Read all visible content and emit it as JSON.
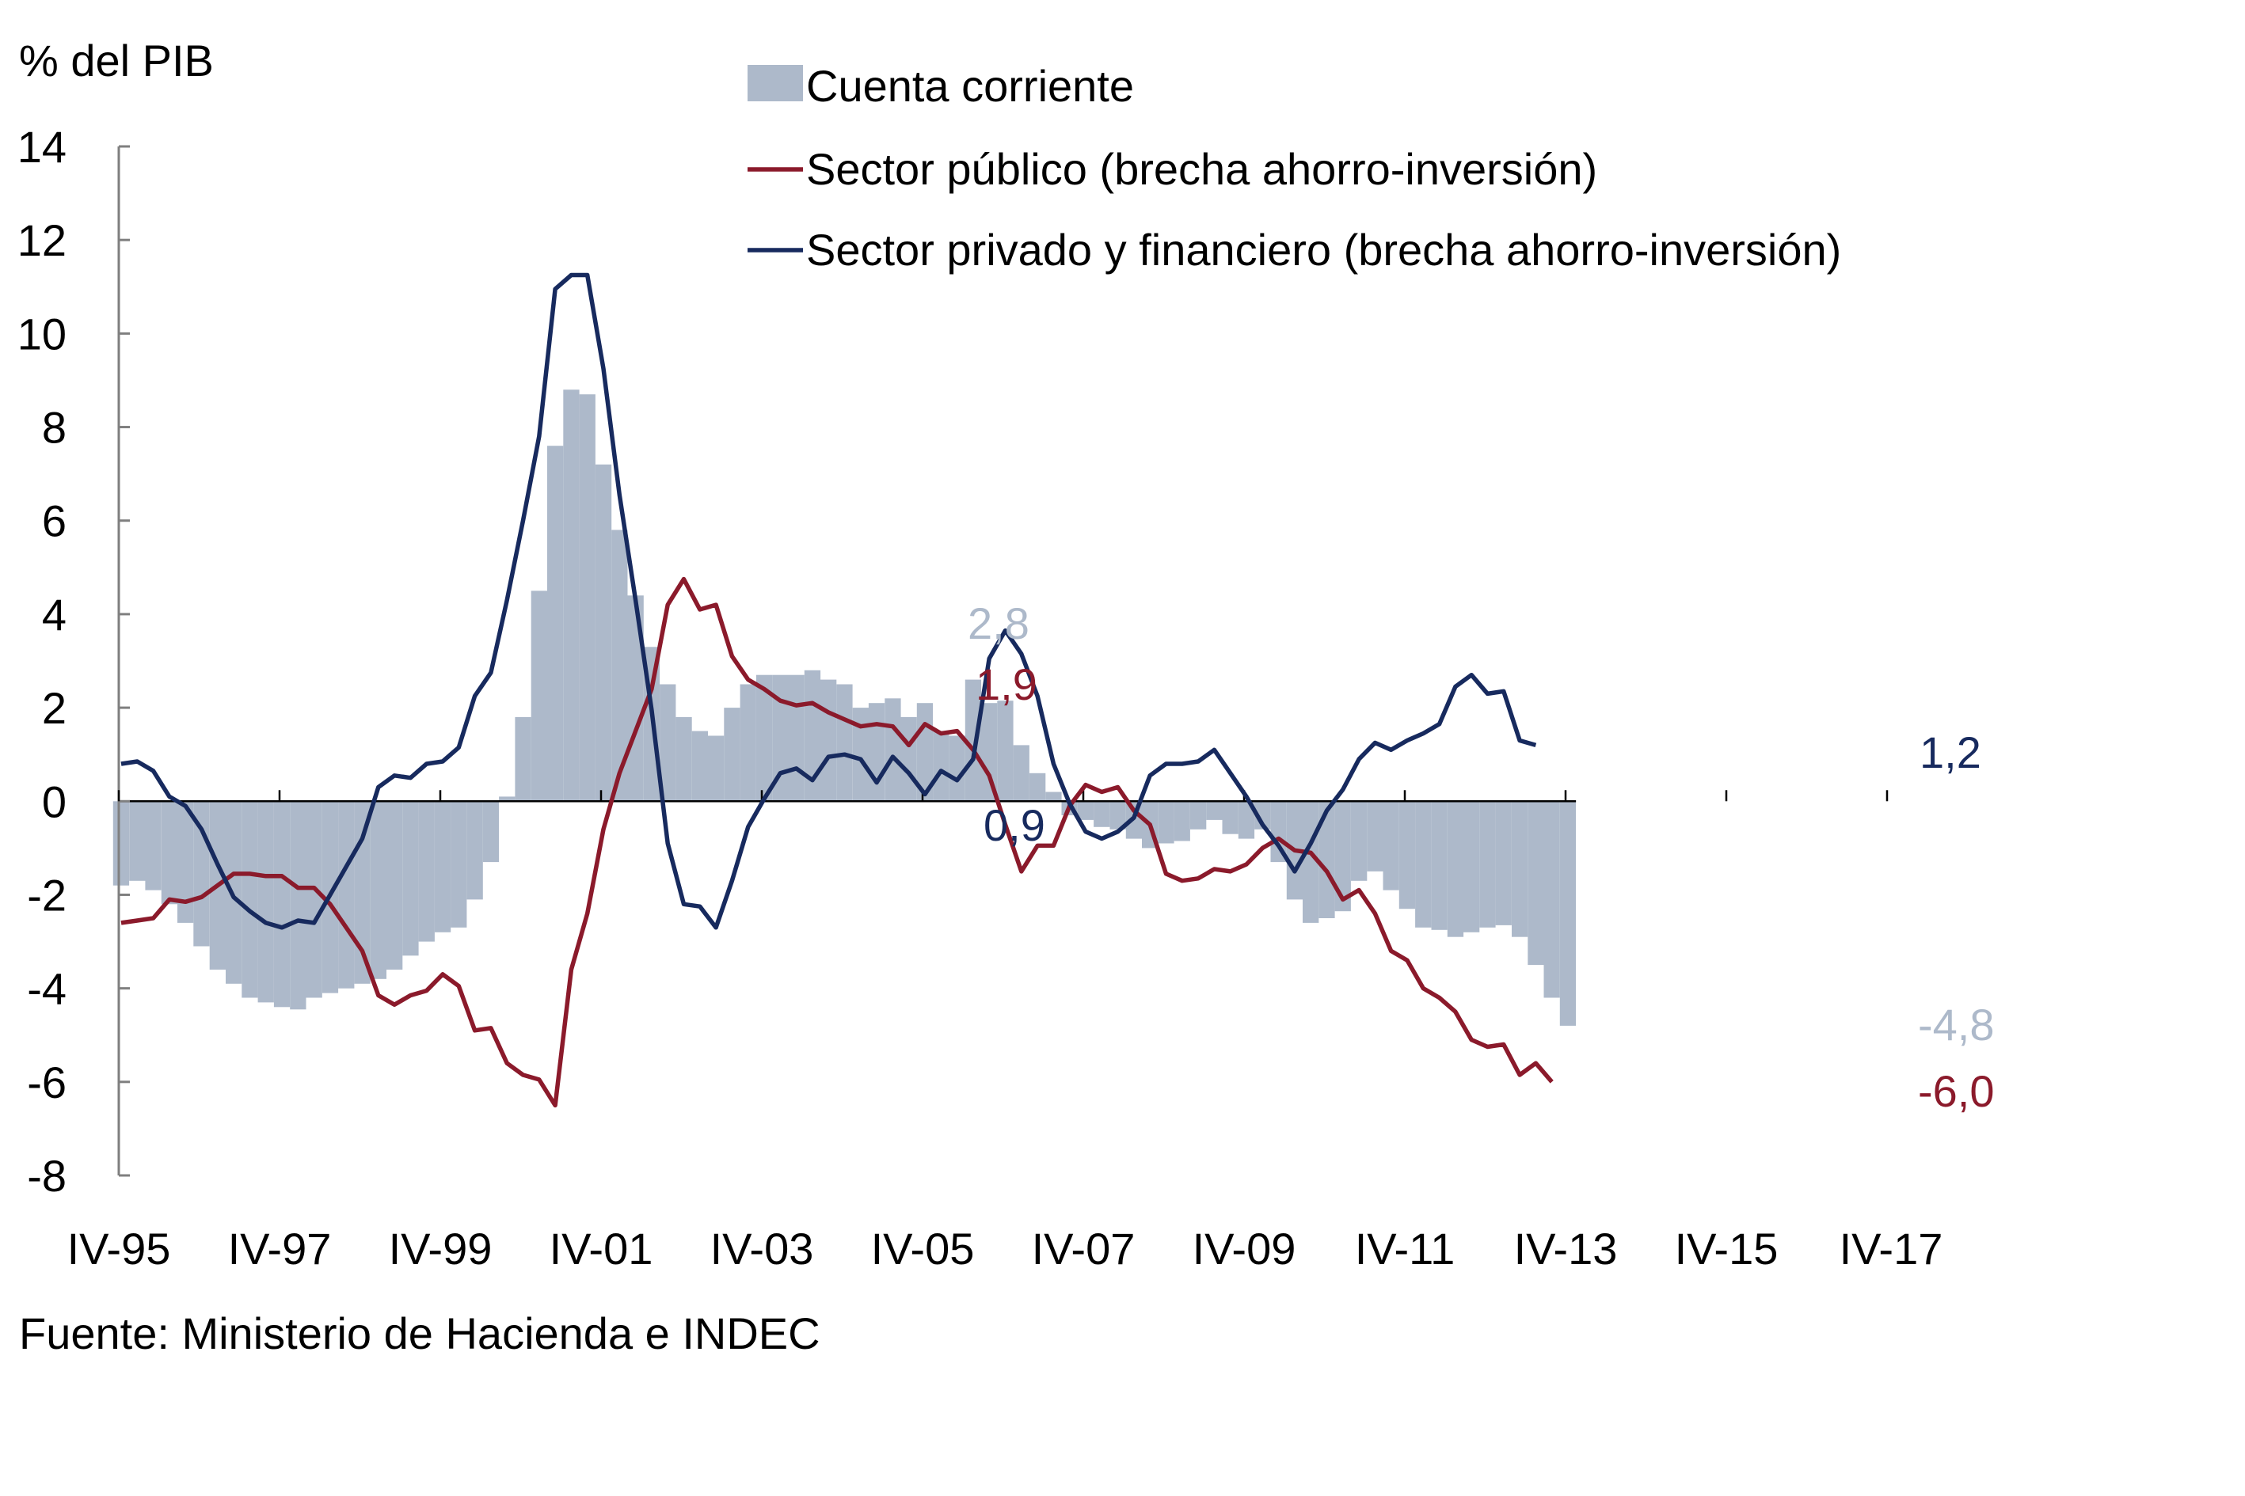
{
  "chart_data": {
    "type": "bar+line",
    "ylabel": "% del PIB",
    "ylim": [
      -8,
      14
    ],
    "yticks": [
      14,
      12,
      10,
      8,
      6,
      4,
      2,
      0,
      -2,
      -4,
      -6,
      -8
    ],
    "ytick_labels": [
      "14",
      "12",
      "10",
      "8",
      "6",
      "4",
      "2",
      "0",
      "-2",
      "-4",
      "-6",
      "-8"
    ],
    "x_start": "IV-95",
    "x_tick_labels": [
      "IV-95",
      "IV-97",
      "IV-99",
      "IV-01",
      "IV-03",
      "IV-05",
      "IV-07",
      "IV-09",
      "IV-11",
      "IV-13",
      "IV-15",
      "IV-17"
    ],
    "legend": [
      "Cuenta corriente",
      "Sector público (brecha ahorro-inversión)",
      "Sector privado y financiero (brecha ahorro-inversión)"
    ],
    "series": [
      {
        "name": "Cuenta corriente",
        "kind": "bar",
        "color": "#adb9ca",
        "values": [
          -1.8,
          -1.7,
          -1.9,
          -2.2,
          -2.6,
          -3.1,
          -3.6,
          -3.9,
          -4.2,
          -4.3,
          -4.4,
          -4.45,
          -4.2,
          -4.1,
          -4.0,
          -3.9,
          -3.8,
          -3.6,
          -3.3,
          -3.0,
          -2.8,
          -2.7,
          -2.1,
          -1.3,
          0.1,
          1.8,
          4.5,
          7.6,
          8.8,
          8.7,
          7.2,
          5.8,
          4.4,
          3.3,
          2.5,
          1.8,
          1.5,
          1.4,
          2.0,
          2.5,
          2.7,
          2.7,
          2.7,
          2.8,
          2.6,
          2.5,
          2.0,
          2.1,
          2.2,
          1.8,
          2.1,
          1.5,
          1.4,
          2.6,
          2.1,
          2.15,
          1.2,
          0.6,
          0.2,
          -0.3,
          -0.4,
          -0.55,
          -0.6,
          -0.8,
          -1.0,
          -0.9,
          -0.85,
          -0.6,
          -0.4,
          -0.7,
          -0.8,
          -0.6,
          -1.3,
          -2.1,
          -2.6,
          -2.5,
          -2.35,
          -1.7,
          -1.5,
          -1.9,
          -2.3,
          -2.7,
          -2.75,
          -2.9,
          -2.8,
          -2.7,
          -2.65,
          -2.9,
          -3.5,
          -4.2,
          -4.8
        ]
      },
      {
        "name": "Sector público (brecha ahorro-inversión)",
        "kind": "line",
        "color": "#8b1a2b",
        "values": [
          -2.6,
          -2.55,
          -2.5,
          -2.1,
          -2.15,
          -2.05,
          -1.8,
          -1.55,
          -1.55,
          -1.6,
          -1.6,
          -1.85,
          -1.85,
          -2.2,
          -2.7,
          -3.2,
          -4.15,
          -4.35,
          -4.15,
          -4.05,
          -3.7,
          -3.95,
          -4.9,
          -4.85,
          -5.6,
          -5.85,
          -5.95,
          -6.5,
          -3.6,
          -2.4,
          -0.6,
          0.6,
          1.5,
          2.4,
          4.2,
          4.75,
          4.1,
          4.2,
          3.1,
          2.6,
          2.4,
          2.15,
          2.05,
          2.1,
          1.9,
          1.75,
          1.6,
          1.65,
          1.6,
          1.2,
          1.65,
          1.45,
          1.5,
          1.1,
          0.55,
          -0.5,
          -1.5,
          -0.95,
          -0.95,
          -0.1,
          0.35,
          0.2,
          0.3,
          -0.2,
          -0.5,
          -1.55,
          -1.7,
          -1.65,
          -1.45,
          -1.5,
          -1.35,
          -1.0,
          -0.8,
          -1.05,
          -1.1,
          -1.5,
          -2.1,
          -1.9,
          -2.4,
          -3.2,
          -3.4,
          -4.0,
          -4.2,
          -4.5,
          -5.1,
          -5.25,
          -5.2,
          -5.85,
          -5.6,
          -6.0
        ]
      },
      {
        "name": "Sector privado y financiero (brecha ahorro-inversión)",
        "kind": "line",
        "color": "#172a5e",
        "values": [
          0.8,
          0.85,
          0.65,
          0.1,
          -0.1,
          -0.6,
          -1.35,
          -2.05,
          -2.35,
          -2.6,
          -2.7,
          -2.55,
          -2.6,
          -2.0,
          -1.4,
          -0.8,
          0.3,
          0.55,
          0.5,
          0.8,
          0.85,
          1.15,
          2.25,
          2.75,
          4.3,
          6.0,
          7.8,
          10.95,
          11.25,
          11.25,
          9.25,
          6.55,
          4.3,
          1.95,
          -0.9,
          -2.2,
          -2.25,
          -2.7,
          -1.7,
          -0.55,
          0.05,
          0.6,
          0.7,
          0.45,
          0.95,
          1.0,
          0.9,
          0.4,
          0.95,
          0.6,
          0.15,
          0.65,
          0.45,
          0.9,
          3.05,
          3.65,
          3.15,
          2.25,
          0.8,
          -0.05,
          -0.65,
          -0.8,
          -0.65,
          -0.35,
          0.55,
          0.8,
          0.8,
          0.85,
          1.1,
          0.6,
          0.1,
          -0.5,
          -0.95,
          -1.5,
          -0.9,
          -0.2,
          0.25,
          0.9,
          1.25,
          1.1,
          1.3,
          1.45,
          1.65,
          2.45,
          2.7,
          2.3,
          2.35,
          1.3,
          1.2
        ]
      }
    ],
    "annotations": [
      {
        "text": "2,8",
        "series": "Cuenta corriente",
        "color": "#adb9ca"
      },
      {
        "text": "1,9",
        "series": "Sector público (brecha ahorro-inversión)",
        "color": "#8b1a2b"
      },
      {
        "text": "0,9",
        "series": "Sector privado y financiero (brecha ahorro-inversión)",
        "color": "#172a5e"
      },
      {
        "text": "1,2",
        "series": "Sector privado y financiero (brecha ahorro-inversión)",
        "color": "#172a5e"
      },
      {
        "text": "-4,8",
        "series": "Cuenta corriente",
        "color": "#adb9ca"
      },
      {
        "text": "-6,0",
        "series": "Sector público (brecha ahorro-inversión)",
        "color": "#8b1a2b"
      }
    ]
  },
  "source_note": "Fuente:  Ministerio de Hacienda  e  INDEC"
}
